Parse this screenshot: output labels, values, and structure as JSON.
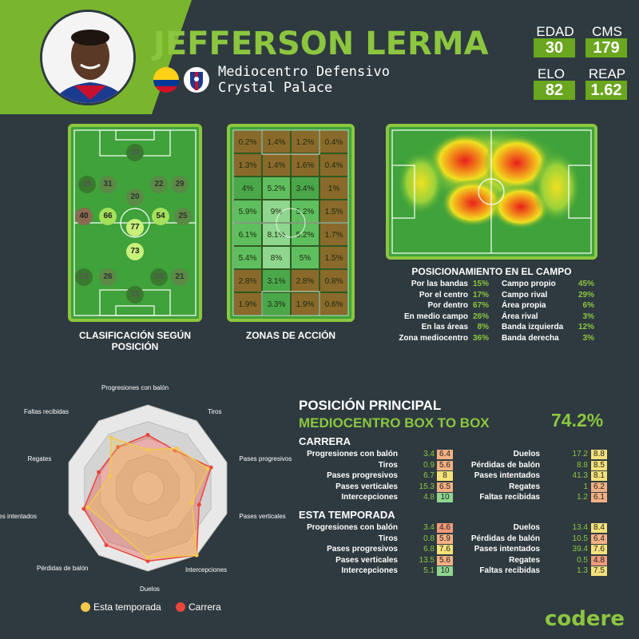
{
  "player": {
    "name": "JEFFERSON LERMA",
    "position": "Mediocentro Defensivo",
    "club": "Crystal Palace"
  },
  "stats": [
    {
      "label": "EDAD",
      "value": "30"
    },
    {
      "label": "CMS",
      "value": "179"
    },
    {
      "label": "ELO",
      "value": "82"
    },
    {
      "label": "REAP",
      "value": "1.62"
    }
  ],
  "colors": {
    "accent": "#8cc63f",
    "background": "#2e3a40",
    "season": "#f2c94c",
    "career": "#e8453c"
  },
  "panels": {
    "classification_title": "CLASIFICACIÓN SEGÚN POSICIÓN",
    "zones_title": "ZONAS DE ACCIÓN",
    "positioning_title": "POSICIONAMIENTO EN EL CAMPO"
  },
  "classification": [
    {
      "v": "10"
    },
    {
      "v": "16"
    },
    {
      "v": "31"
    },
    {
      "v": "22"
    },
    {
      "v": "29"
    },
    {
      "v": "20"
    },
    {
      "v": "40"
    },
    {
      "v": "66"
    },
    {
      "v": "54"
    },
    {
      "v": "25"
    },
    {
      "v": "77"
    },
    {
      "v": "73"
    },
    {
      "v": "19"
    },
    {
      "v": "26"
    },
    {
      "v": "18"
    },
    {
      "v": "21"
    },
    {
      "v": "11"
    }
  ],
  "zones": [
    [
      "0.2%",
      "1.4%",
      "1.2%",
      "0.4%"
    ],
    [
      "1.3%",
      "1.4%",
      "1.6%",
      "0.4%"
    ],
    [
      "4%",
      "5.2%",
      "3.4%",
      "1%"
    ],
    [
      "5.9%",
      "9%",
      "5.2%",
      "1.5%"
    ],
    [
      "6.1%",
      "8.1%",
      "5.2%",
      "1.7%"
    ],
    [
      "5.4%",
      "8%",
      "5%",
      "1.5%"
    ],
    [
      "2.8%",
      "3.1%",
      "2.8%",
      "0.8%"
    ],
    [
      "1.9%",
      "3.3%",
      "1.9%",
      "0.6%"
    ]
  ],
  "positioning": {
    "left": [
      {
        "label": "Por las bandas",
        "value": "15%"
      },
      {
        "label": "Por el centro",
        "value": "17%"
      },
      {
        "label": "Por dentro",
        "value": "67%"
      },
      {
        "label": "En medio campo",
        "value": "26%"
      },
      {
        "label": "En las áreas",
        "value": "8%"
      },
      {
        "label": "Zona mediocentro",
        "value": "36%"
      }
    ],
    "right": [
      {
        "label": "Campo propio",
        "value": "45%"
      },
      {
        "label": "Campo rival",
        "value": "29%"
      },
      {
        "label": "Área propia",
        "value": "6%"
      },
      {
        "label": "Área rival",
        "value": "3%"
      },
      {
        "label": "Banda izquierda",
        "value": "12%"
      },
      {
        "label": "Banda derecha",
        "value": "3%"
      }
    ]
  },
  "main_position": {
    "title": "POSICIÓN PRINCIPAL",
    "role": "MEDIOCENTRO BOX TO BOX",
    "pct": "74.2%"
  },
  "career": {
    "title": "CARRERA",
    "left": [
      {
        "label": "Progresiones con balón",
        "value": "3.4",
        "rank": "6.4",
        "color": "#f4b183"
      },
      {
        "label": "Tiros",
        "value": "0.9",
        "rank": "5.6",
        "color": "#f4b183"
      },
      {
        "label": "Pases progresivos",
        "value": "6.7",
        "rank": "8",
        "color": "#f6e27a"
      },
      {
        "label": "Pases verticales",
        "value": "15.3",
        "rank": "6.5",
        "color": "#f4b183"
      },
      {
        "label": "Intercepciones",
        "value": "4.8",
        "rank": "10",
        "color": "#8fd68f"
      }
    ],
    "right": [
      {
        "label": "Duelos",
        "value": "17.2",
        "rank": "8.8",
        "color": "#f6e27a"
      },
      {
        "label": "Pérdidas de balón",
        "value": "8.8",
        "rank": "8.5",
        "color": "#f6e27a"
      },
      {
        "label": "Pases intentados",
        "value": "41.3",
        "rank": "8.1",
        "color": "#f6e27a"
      },
      {
        "label": "Regates",
        "value": "1",
        "rank": "6.2",
        "color": "#f4b183"
      },
      {
        "label": "Faltas recibidas",
        "value": "1.2",
        "rank": "6.1",
        "color": "#f4b183"
      }
    ]
  },
  "season": {
    "title": "ESTA TEMPORADA",
    "left": [
      {
        "label": "Progresiones con balón",
        "value": "3.4",
        "rank": "4.6",
        "color": "#ef9a7a"
      },
      {
        "label": "Tiros",
        "value": "0.8",
        "rank": "5.9",
        "color": "#f4b183"
      },
      {
        "label": "Pases progresivos",
        "value": "6.8",
        "rank": "7.6",
        "color": "#f6e27a"
      },
      {
        "label": "Pases verticales",
        "value": "13.5",
        "rank": "5.6",
        "color": "#f4b183"
      },
      {
        "label": "Intercepciones",
        "value": "5.1",
        "rank": "10",
        "color": "#8fd68f"
      }
    ],
    "right": [
      {
        "label": "Duelos",
        "value": "13.4",
        "rank": "8.4",
        "color": "#f6e27a"
      },
      {
        "label": "Pérdidas de balón",
        "value": "10.5",
        "rank": "6.4",
        "color": "#f4b183"
      },
      {
        "label": "Pases intentados",
        "value": "39.4",
        "rank": "7.6",
        "color": "#f6e27a"
      },
      {
        "label": "Regates",
        "value": "0.5",
        "rank": "4.8",
        "color": "#ef9a7a"
      },
      {
        "label": "Faltas recibidas",
        "value": "1.3",
        "rank": "7.5",
        "color": "#f6e27a"
      }
    ]
  },
  "radar": {
    "axes": [
      "Progresiones con balón",
      "Tiros",
      "Pases progresivos",
      "Pases verticales",
      "Intercepciones",
      "Duelos",
      "Pérdidas de balón",
      "Pases intentados",
      "Regates",
      "Faltas recibidas"
    ],
    "season": [
      0.46,
      0.59,
      0.76,
      0.56,
      1.0,
      0.84,
      0.64,
      0.76,
      0.48,
      0.75
    ],
    "career": [
      0.64,
      0.56,
      0.8,
      0.65,
      1.0,
      0.88,
      0.85,
      0.81,
      0.62,
      0.61
    ],
    "legend_season": "Esta temporada",
    "legend_career": "Carrera"
  },
  "brand": "codere"
}
